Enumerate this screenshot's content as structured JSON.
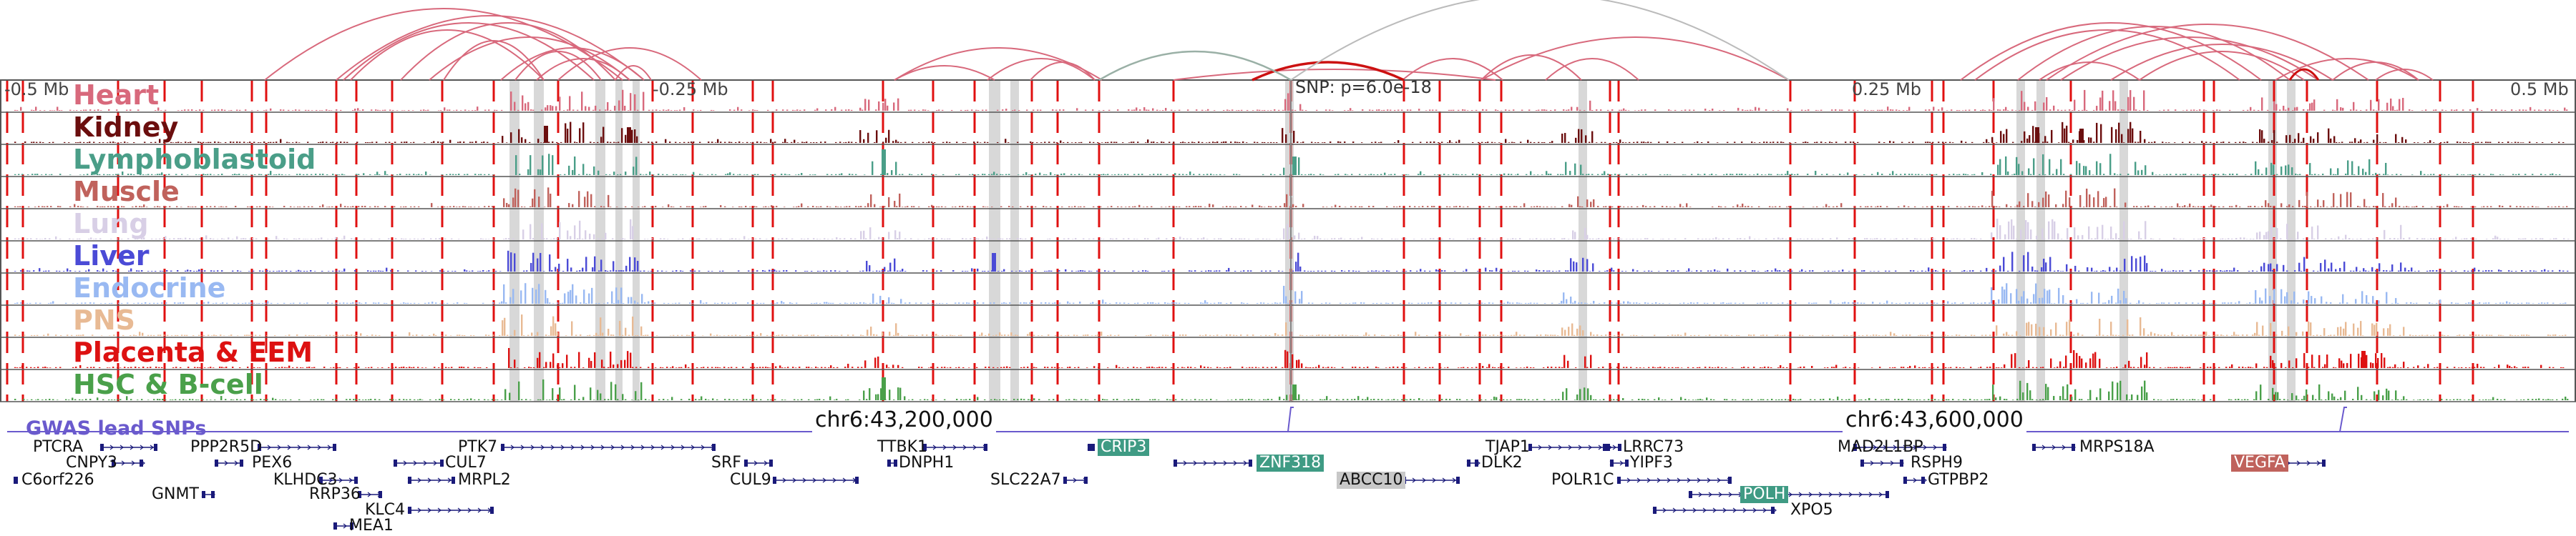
{
  "axis": {
    "left_label": "-0.5 Mb",
    "neg_quarter_label": "-0.25 Mb",
    "snp_label": "SNP: p=6.0e-18",
    "pos_quarter_label": "0.25 Mb",
    "right_label": "0.5 Mb"
  },
  "tracks": [
    {
      "label": "Heart",
      "color": "#d8697c"
    },
    {
      "label": "Kidney",
      "color": "#6b0e0e"
    },
    {
      "label": "Lymphoblastoid",
      "color": "#4a9e88"
    },
    {
      "label": "Muscle",
      "color": "#c0625c"
    },
    {
      "label": "Lung",
      "color": "#d8cfe6"
    },
    {
      "label": "Liver",
      "color": "#4b4bd6"
    },
    {
      "label": "Endocrine",
      "color": "#99b9f2"
    },
    {
      "label": "PNS",
      "color": "#e8ba94"
    },
    {
      "label": "Placenta & EEM",
      "color": "#dd1111"
    },
    {
      "label": "HSC & B-cell",
      "color": "#4aa04a"
    }
  ],
  "coordinates": {
    "left": "chr6:43,200,000",
    "right": "chr6:43,600,000"
  },
  "gwas": {
    "label": "GWAS lead SNPs",
    "color": "#6a5acd"
  },
  "genes": [
    {
      "name": "PTCRA"
    },
    {
      "name": "CNPY3"
    },
    {
      "name": "C6orf226"
    },
    {
      "name": "GNMT"
    },
    {
      "name": "PPP2R5D"
    },
    {
      "name": "PEX6"
    },
    {
      "name": "KLHDC3"
    },
    {
      "name": "RRP36"
    },
    {
      "name": "KLC4"
    },
    {
      "name": "MEA1"
    },
    {
      "name": "PTK7"
    },
    {
      "name": "CUL7"
    },
    {
      "name": "MRPL2"
    },
    {
      "name": "SRF"
    },
    {
      "name": "CUL9"
    },
    {
      "name": "TTBK1"
    },
    {
      "name": "DNPH1"
    },
    {
      "name": "SLC22A7"
    },
    {
      "name": "CRIP3"
    },
    {
      "name": "ZNF318"
    },
    {
      "name": "ABCC10"
    },
    {
      "name": "TJAP1"
    },
    {
      "name": "DLK2"
    },
    {
      "name": "LRRC73"
    },
    {
      "name": "YIPF3"
    },
    {
      "name": "POLR1C"
    },
    {
      "name": "POLH"
    },
    {
      "name": "XPO5"
    },
    {
      "name": "MAD2L1BP"
    },
    {
      "name": "RSPH9"
    },
    {
      "name": "GTPBP2"
    },
    {
      "name": "MRPS18A"
    },
    {
      "name": "VEGFA"
    }
  ],
  "colors": {
    "boundary_red": "#e01010",
    "highlight_gray": "#c8c8c8",
    "arc_pink": "#d8697c",
    "arc_red": "#cc1111",
    "arc_gray": "#9ab0a6",
    "gene_navy": "#1a1a7a",
    "crip3_bg": "#3f9b84",
    "znf318_bg": "#3f9b84",
    "polh_bg": "#3f9b84",
    "abcc10_bg": "#c8c8c8",
    "vegfa_bg": "#c0625c"
  }
}
